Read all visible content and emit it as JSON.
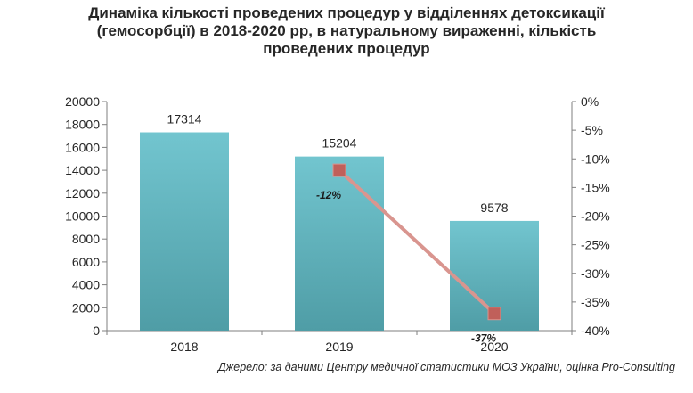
{
  "chart_data": {
    "type": "bar",
    "title_lines": [
      "Динаміка кількості проведених процедур у відділеннях детоксикації",
      "(гемосорбції) в 2018-2020 рр, в натуральному вираженні, кількість",
      "проведених процедур"
    ],
    "categories": [
      "2018",
      "2019",
      "2020"
    ],
    "values": [
      17314,
      15204,
      9578
    ],
    "value_labels": [
      "17314",
      "15204",
      "9578"
    ],
    "ylim": [
      0,
      20000
    ],
    "y_ticks": [
      0,
      2000,
      4000,
      6000,
      8000,
      10000,
      12000,
      14000,
      16000,
      18000,
      20000
    ],
    "y_tick_labels": [
      "0",
      "2000",
      "4000",
      "6000",
      "8000",
      "10000",
      "12000",
      "14000",
      "16000",
      "18000",
      "20000"
    ],
    "line_series": {
      "categories": [
        "2019",
        "2020"
      ],
      "values": [
        -12,
        -37
      ],
      "labels": [
        "-12%",
        "-37%"
      ]
    },
    "y2lim": [
      -40,
      0
    ],
    "y2_ticks": [
      0,
      -5,
      -10,
      -15,
      -20,
      -25,
      -30,
      -35,
      -40
    ],
    "y2_tick_labels": [
      "0%",
      "-5%",
      "-10%",
      "-15%",
      "-20%",
      "-25%",
      "-30%",
      "-35%",
      "-40%"
    ],
    "legend": "none",
    "grid": false,
    "colors": {
      "bar_top": "#72C5CF",
      "bar_bottom": "#4F9DA6",
      "line": "#D9958F",
      "marker": "#C0605A",
      "axis": "#7f7f7f"
    },
    "source": "Джерело: за даними Центру медичної статистики МОЗ України, оцінка Pro-Consulting"
  }
}
